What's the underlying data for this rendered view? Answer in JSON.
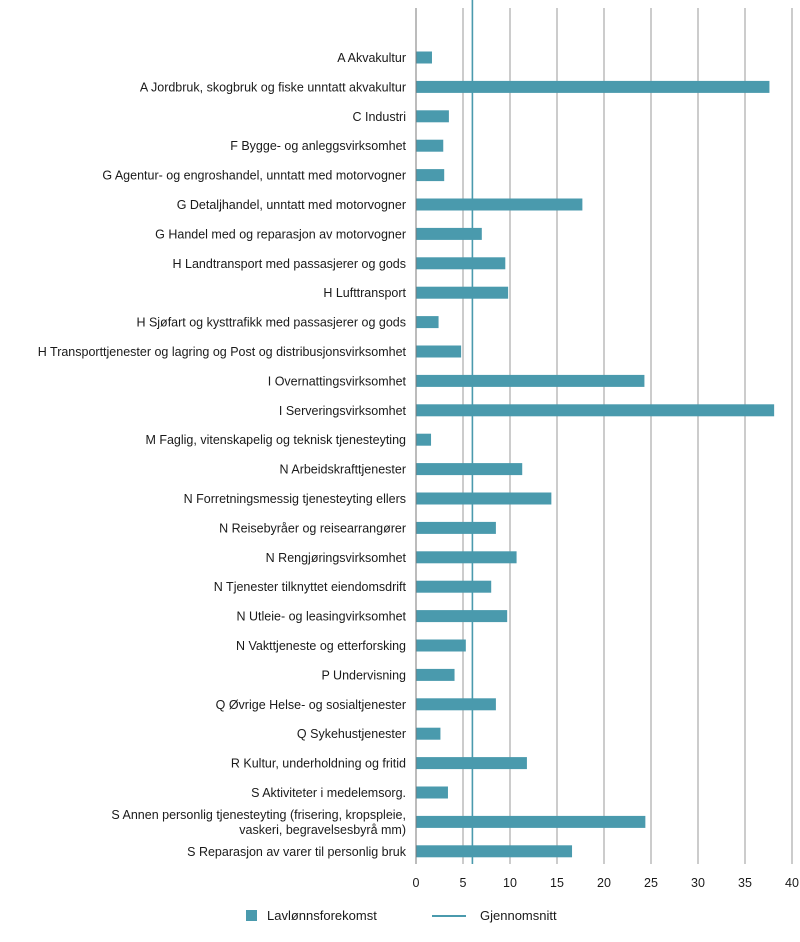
{
  "chart_data": {
    "type": "bar",
    "orientation": "horizontal",
    "categories": [
      "A Akvakultur",
      "A Jordbruk, skogbruk og fiske unntatt akvakultur",
      "C Industri",
      "F Bygge- og anleggsvirksomhet",
      "G Agentur- og engroshandel, unntatt med motorvogner",
      "G Detaljhandel, unntatt med motorvogner",
      "G Handel med og reparasjon av motorvogner",
      "H Landtransport med passasjerer og gods",
      "H Lufttransport",
      "H Sjøfart og kysttrafikk med passasjerer og gods",
      "H Transporttjenester og lagring og Post og distribusjonsvirksomhet",
      "I Overnattingsvirksomhet",
      "I Serveringsvirksomhet",
      "M Faglig, vitenskapelig og teknisk tjenesteyting",
      "N Arbeidskrafttjenester",
      "N Forretningsmessig tjenesteyting ellers",
      "N Reisebyråer og reisearrangører",
      "N Rengjøringsvirksomhet",
      "N Tjenester tilknyttet eiendomsdrift",
      "N Utleie- og leasingvirksomhet",
      "N Vakttjeneste og etterforsking",
      "P Undervisning",
      "Q Øvrige Helse- og sosialtjenester",
      "Q Sykehustjenester",
      "R Kultur, underholdning og fritid",
      "S Aktiviteter i medelemsorg.",
      "S Annen personlig tjenesteyting (frisering, kropspleie, vaskeri, begravelsesbyrå mm)",
      "S Reparasjon av varer til personlig bruk"
    ],
    "series": [
      {
        "name": "Lavlønnsforekomst",
        "values": [
          1.7,
          37.6,
          3.5,
          2.9,
          3.0,
          17.7,
          7.0,
          9.5,
          9.8,
          2.4,
          4.8,
          24.3,
          38.1,
          1.6,
          11.3,
          14.4,
          8.5,
          10.7,
          8.0,
          9.7,
          5.3,
          4.1,
          8.5,
          2.6,
          11.8,
          3.4,
          24.4,
          16.6
        ],
        "color": "#4a9aad"
      }
    ],
    "reference_lines": [
      {
        "name": "Gjennomsnitt",
        "value": 6.0,
        "color": "#4a9aad"
      }
    ],
    "xlim": [
      0,
      40
    ],
    "xticks": [
      "0",
      "5",
      "10",
      "15",
      "20",
      "25",
      "30",
      "35",
      "40"
    ],
    "xlabel": "",
    "ylabel": "",
    "title": "",
    "grid": "vertical",
    "grid_color": "#9a9a9a",
    "legend_position": "bottom-center",
    "legend": [
      {
        "label": "Lavlønnsforekomst",
        "kind": "bar-swatch"
      },
      {
        "label": "Gjennomsnitt",
        "kind": "line"
      }
    ]
  }
}
